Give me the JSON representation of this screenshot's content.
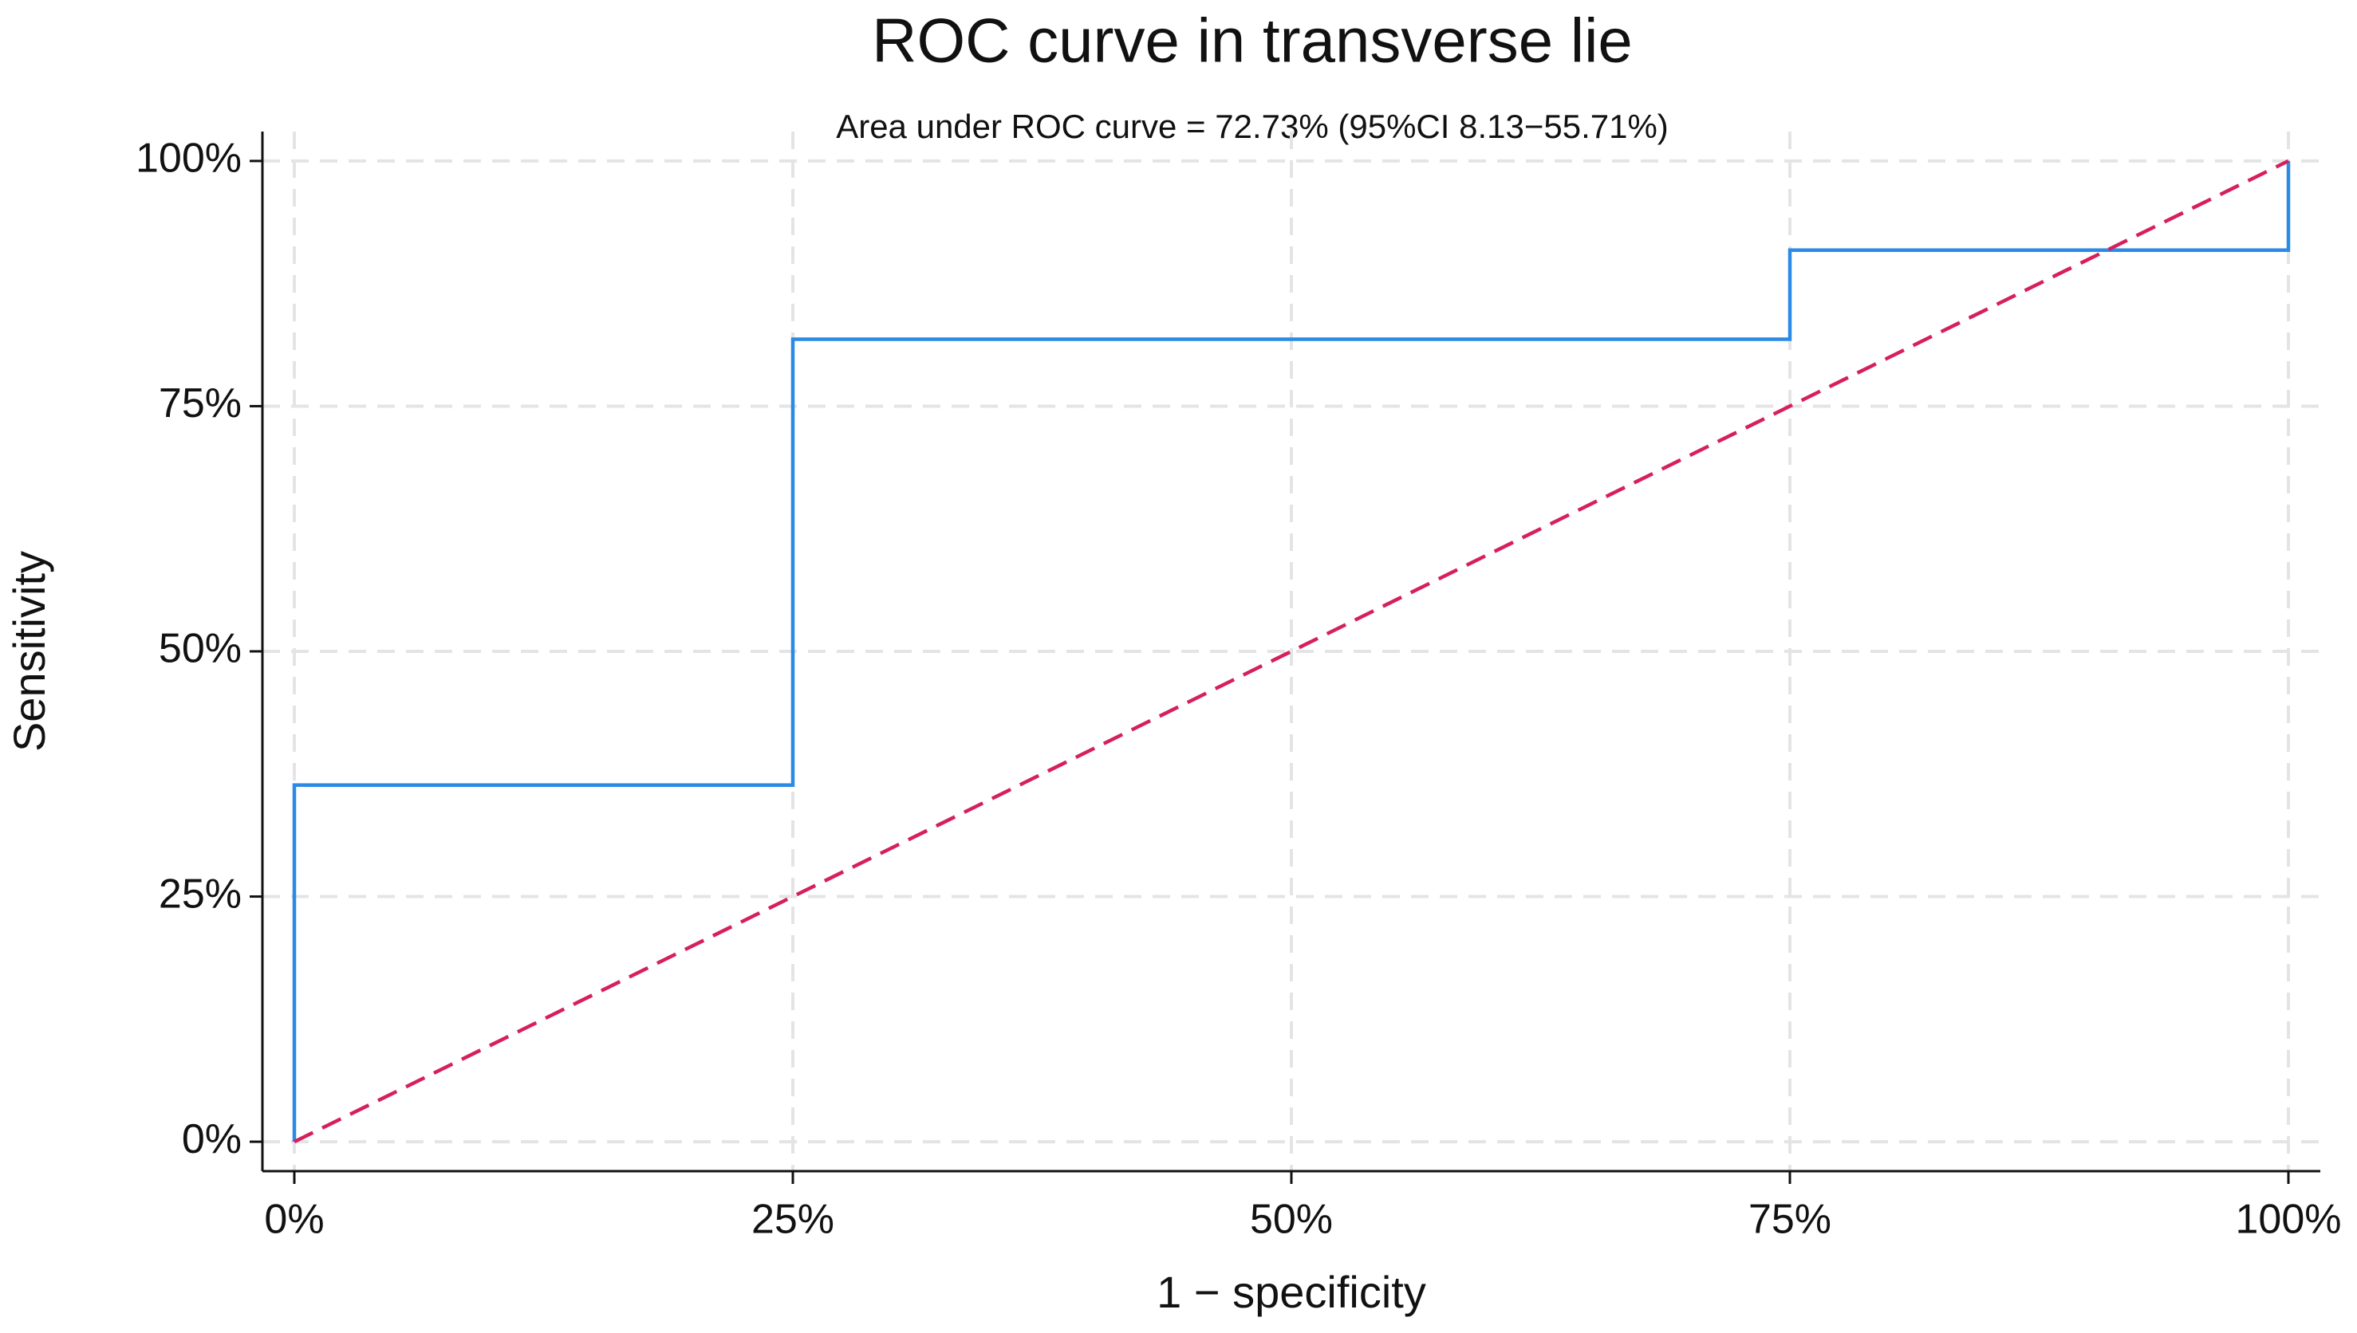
{
  "chart_data": {
    "type": "line",
    "title": "ROC curve in transverse lie",
    "subtitle": "Area under ROC curve = 72.73% (95%CI 8.13−55.71%)",
    "x_label": "1 − specificity",
    "y_label": "Sensitivity",
    "series": [
      {
        "color": "#2a8ae6",
        "x": [
          0,
          0,
          25,
          25,
          75,
          75,
          100,
          100
        ],
        "values": [
          0,
          36.36,
          36.36,
          81.82,
          81.82,
          90.91,
          90.91,
          100
        ]
      },
      {
        "color": "#d61f5e",
        "dashed": true,
        "x": [
          0,
          100
        ],
        "values": [
          0,
          100
        ]
      }
    ],
    "xlim": [
      -1.6,
      101.6
    ],
    "ylim": [
      -3,
      103
    ],
    "xticks": [
      {
        "value": 0,
        "label": "0%"
      },
      {
        "value": 25,
        "label": "25%"
      },
      {
        "value": 50,
        "label": "50%"
      },
      {
        "value": 75,
        "label": "75%"
      },
      {
        "value": 100,
        "label": "100%"
      }
    ],
    "yticks": [
      {
        "value": 0,
        "label": "0%"
      },
      {
        "value": 25,
        "label": "25%"
      },
      {
        "value": 50,
        "label": "50%"
      },
      {
        "value": 75,
        "label": "75%"
      },
      {
        "value": 100,
        "label": "100%"
      }
    ],
    "grid": true
  }
}
